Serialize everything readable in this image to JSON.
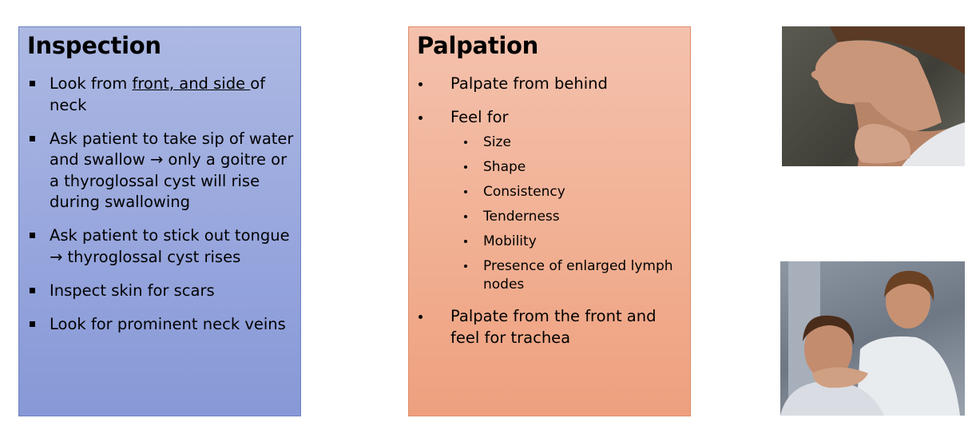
{
  "inspection": {
    "title": "Inspection",
    "items": [
      {
        "pre": "Look from ",
        "underlined": "front, and side ",
        "post": "of neck"
      },
      {
        "text": "Ask patient to take sip of water and swallow → only a goitre or a thyroglossal cyst will rise during swallowing"
      },
      {
        "text": "Ask patient to stick out tongue → thyroglossal cyst rises"
      },
      {
        "text": "Inspect skin for scars"
      },
      {
        "text": "Look for prominent neck veins"
      }
    ]
  },
  "palpation": {
    "title": "Palpation",
    "items": [
      {
        "text": "Palpate from behind"
      },
      {
        "text": "Feel for",
        "sub": [
          "Size",
          "Shape",
          "Consistency",
          "Tenderness",
          "Mobility",
          "Presence of enlarged lymph nodes"
        ]
      },
      {
        "text": "Palpate from the front and feel for trachea"
      }
    ]
  },
  "colors": {
    "inspection_bg": "#97a6dd",
    "palpation_bg": "#f1b093"
  }
}
